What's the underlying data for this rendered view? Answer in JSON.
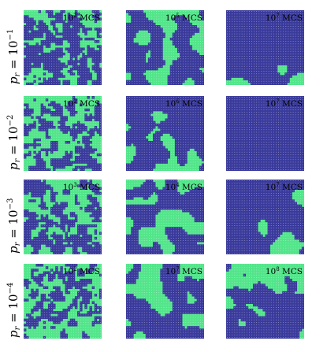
{
  "colors": {
    "blue": "#3a3a9c",
    "green": "#52e58a",
    "dot": "#ffffff"
  },
  "row_labels": [
    "10^−1",
    "10^−2",
    "10^−3",
    "10^−4"
  ],
  "row_label_prefix": "p_r =",
  "time_label": "MCS",
  "panel_times": [
    [
      "10^2",
      "10^5",
      "10^7"
    ],
    [
      "10^2",
      "10^6",
      "10^7"
    ],
    [
      "10^3",
      "10^4",
      "10^7"
    ],
    [
      "10^2",
      "10^7",
      "10^8"
    ]
  ],
  "panel_descriptions": [
    [
      "fine-grained random domains",
      "medium domains",
      "large blue-dominated domains"
    ],
    [
      "fine-grained random domains",
      "medium domains",
      "mostly blue"
    ],
    [
      "fine-grained random domains",
      "medium domains",
      "large domains"
    ],
    [
      "fine-grained random domains",
      "banded domains",
      "mostly green top region"
    ]
  ]
}
